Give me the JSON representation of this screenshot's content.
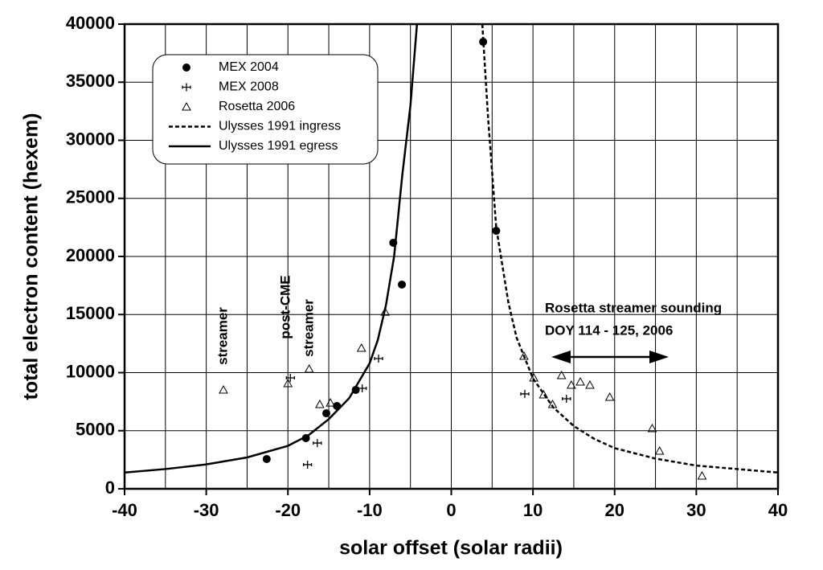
{
  "chart_data": {
    "type": "scatter",
    "xlabel": "solar offset (solar radii)",
    "ylabel": "total electron content (hexem)",
    "xlim": [
      -40,
      40
    ],
    "ylim": [
      0,
      40000
    ],
    "xticks": [
      -40,
      -30,
      -20,
      -10,
      0,
      10,
      20,
      30,
      40
    ],
    "yticks": [
      0,
      5000,
      10000,
      15000,
      20000,
      25000,
      30000,
      35000,
      40000
    ],
    "x_minor_grid": [
      -35,
      -25,
      -15,
      -5,
      5,
      15,
      25,
      35
    ],
    "grid": true,
    "legend": "upper left",
    "series": [
      {
        "name": "MEX 2004",
        "color": "#000000",
        "marker": "circle",
        "x": [
          -22.6,
          -17.8,
          -15.3,
          -14.0,
          -11.7,
          -7.1,
          -6.05,
          3.9,
          5.5
        ],
        "values": [
          2560,
          4360,
          6500,
          7130,
          8510,
          21180,
          17580,
          38480,
          22210
        ]
      },
      {
        "name": "MEX 2008",
        "color": "#000000",
        "marker": "cross",
        "x": [
          -17.6,
          -16.4,
          -19.7,
          -10.9,
          -8.9,
          9.0,
          14.1
        ],
        "values": [
          2080,
          3940,
          9550,
          8650,
          11210,
          8170,
          7750
        ]
      },
      {
        "name": "Rosetta 2006",
        "color": "#000000",
        "marker": "triangle",
        "x": [
          -27.9,
          -20.0,
          -17.4,
          -16.1,
          -14.8,
          -11.0,
          -8.1,
          8.9,
          10.1,
          11.3,
          12.4,
          13.5,
          14.7,
          15.8,
          16.97,
          19.4,
          24.6,
          25.5,
          30.7
        ],
        "values": [
          8510,
          9070,
          10310,
          7270,
          7400,
          12110,
          15220,
          11420,
          9550,
          8100,
          7270,
          9760,
          8930,
          9200,
          8930,
          7890,
          5190,
          3250,
          1110
        ]
      },
      {
        "name": "Ulysses 1991 ingress",
        "color": "#000000",
        "line_style": "dashed",
        "x": [
          3.8,
          4.5,
          5.5,
          7,
          8,
          10,
          12.5,
          15,
          17.5,
          20,
          25,
          30,
          35,
          40
        ],
        "values": [
          40000,
          32000,
          22500,
          16000,
          13000,
          9500,
          7000,
          5400,
          4300,
          3500,
          2600,
          2000,
          1700,
          1400
        ]
      },
      {
        "name": "Ulysses 1991 egress",
        "color": "#000000",
        "line_style": "solid",
        "x": [
          -40,
          -35,
          -30,
          -25,
          -20,
          -17.5,
          -15,
          -12.5,
          -10,
          -9,
          -8,
          -7,
          -6,
          -5,
          -4.2
        ],
        "values": [
          1400,
          1700,
          2100,
          2700,
          3700,
          4600,
          6000,
          7800,
          10800,
          12800,
          15800,
          20000,
          27000,
          33000,
          40000
        ]
      }
    ],
    "annotations": [
      "streamer",
      "post-CME",
      "streamer",
      "Rosetta streamer sounding",
      "DOY 114 - 125, 2006"
    ]
  }
}
